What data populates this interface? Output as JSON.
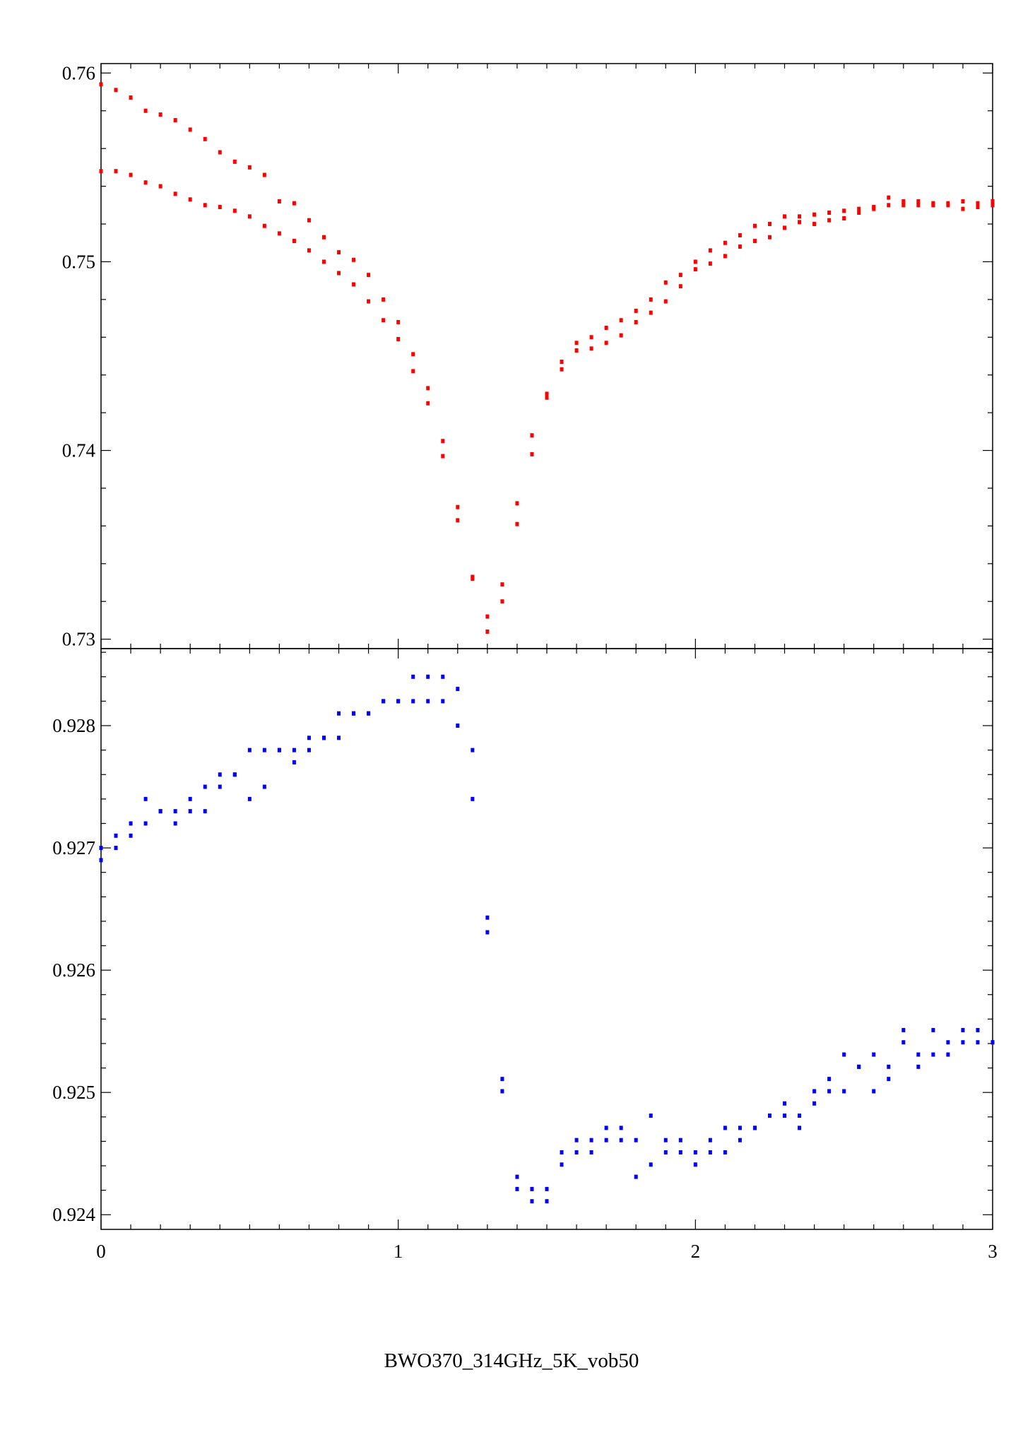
{
  "caption": "BWO370_314GHz_5K_vob50",
  "chart_data": [
    {
      "type": "scatter",
      "panel": "top",
      "title": "",
      "xlabel": "",
      "ylabel": "",
      "xlim": [
        0,
        3
      ],
      "ylim": [
        0.7295,
        0.7605
      ],
      "x_ticks": [
        0,
        1,
        2,
        3
      ],
      "y_ticks": [
        0.73,
        0.74,
        0.75,
        0.76
      ],
      "y_tick_labels": [
        "0.73",
        "0.74",
        "0.75",
        "0.76"
      ],
      "grid": false,
      "legend": "none",
      "color": "#ff0000",
      "series": [
        {
          "x": [
            0.0,
            0.05,
            0.1,
            0.15,
            0.2,
            0.25,
            0.3,
            0.35,
            0.4,
            0.45,
            0.5,
            0.55,
            0.6,
            0.65,
            0.7,
            0.75,
            0.8,
            0.85,
            0.9,
            0.95,
            1.0,
            1.05,
            1.1,
            1.15,
            1.2,
            1.25,
            1.3,
            1.35,
            1.4,
            1.45,
            1.5,
            1.55,
            1.6,
            1.65,
            1.7,
            1.75,
            1.8,
            1.85,
            1.9,
            1.95,
            2.0,
            2.05,
            2.1,
            2.15,
            2.2,
            2.25,
            2.3,
            2.35,
            2.4,
            2.45,
            2.5,
            2.55,
            2.6,
            2.65,
            2.7,
            2.75,
            2.8,
            2.85,
            2.9,
            2.95,
            3.0
          ],
          "y": [
            0.7594,
            0.7591,
            0.7587,
            0.758,
            0.7578,
            0.7575,
            0.757,
            0.7565,
            0.7558,
            0.7553,
            0.755,
            0.7546,
            0.7532,
            0.7531,
            0.7522,
            0.7513,
            0.7505,
            0.7501,
            0.7493,
            0.748,
            0.7468,
            0.7451,
            0.7433,
            0.7405,
            0.737,
            0.7333,
            0.7312,
            0.7329,
            0.7372,
            0.7408,
            0.743,
            0.7447,
            0.7457,
            0.746,
            0.7465,
            0.7469,
            0.7474,
            0.748,
            0.7489,
            0.7493,
            0.75,
            0.7506,
            0.751,
            0.7514,
            0.7519,
            0.752,
            0.7524,
            0.7524,
            0.7525,
            0.7526,
            0.7527,
            0.7528,
            0.7529,
            0.7534,
            0.7532,
            0.7532,
            0.7531,
            0.7531,
            0.7532,
            0.7531,
            0.7532
          ]
        },
        {
          "x": [
            0.0,
            0.05,
            0.1,
            0.15,
            0.2,
            0.25,
            0.3,
            0.35,
            0.4,
            0.45,
            0.5,
            0.55,
            0.6,
            0.65,
            0.7,
            0.75,
            0.8,
            0.85,
            0.9,
            0.95,
            1.0,
            1.05,
            1.1,
            1.15,
            1.2,
            1.25,
            1.3,
            1.35,
            1.4,
            1.45,
            1.5,
            1.55,
            1.6,
            1.65,
            1.7,
            1.75,
            1.8,
            1.85,
            1.9,
            1.95,
            2.0,
            2.05,
            2.1,
            2.15,
            2.2,
            2.25,
            2.3,
            2.35,
            2.4,
            2.45,
            2.5,
            2.55,
            2.6,
            2.65,
            2.7,
            2.75,
            2.8,
            2.85,
            2.9,
            2.95,
            3.0
          ],
          "y": [
            0.7548,
            0.7548,
            0.7546,
            0.7542,
            0.754,
            0.7536,
            0.7533,
            0.753,
            0.7529,
            0.7527,
            0.7524,
            0.7519,
            0.7515,
            0.7511,
            0.7506,
            0.75,
            0.7494,
            0.7488,
            0.7479,
            0.7469,
            0.7459,
            0.7442,
            0.7425,
            0.7397,
            0.7363,
            0.7332,
            0.7304,
            0.732,
            0.7361,
            0.7398,
            0.7428,
            0.7443,
            0.7453,
            0.7454,
            0.7457,
            0.7461,
            0.7468,
            0.7473,
            0.7479,
            0.7487,
            0.7496,
            0.7499,
            0.7503,
            0.7508,
            0.7511,
            0.7513,
            0.7518,
            0.7521,
            0.752,
            0.7522,
            0.7523,
            0.7526,
            0.7528,
            0.753,
            0.753,
            0.753,
            0.753,
            0.753,
            0.7528,
            0.7529,
            0.753
          ]
        }
      ]
    },
    {
      "type": "scatter",
      "panel": "bottom",
      "title": "",
      "xlabel": "",
      "ylabel": "",
      "xlim": [
        0,
        3
      ],
      "ylim": [
        0.92388,
        0.92863
      ],
      "x_ticks": [
        0,
        1,
        2,
        3
      ],
      "x_tick_labels": [
        "0",
        "1",
        "2",
        "3"
      ],
      "y_ticks": [
        0.924,
        0.925,
        0.926,
        0.927,
        0.928
      ],
      "y_tick_labels": [
        "0.924",
        "0.925",
        "0.926",
        "0.927",
        "0.928"
      ],
      "grid": false,
      "legend": "none",
      "color": "#0000ff",
      "series": [
        {
          "x": [
            0.0,
            0.05,
            0.1,
            0.15,
            0.2,
            0.25,
            0.3,
            0.35,
            0.4,
            0.45,
            0.5,
            0.55,
            0.6,
            0.65,
            0.7,
            0.75,
            0.8,
            0.85,
            0.9,
            0.95,
            1.0,
            1.05,
            1.1,
            1.15,
            1.2,
            1.25,
            1.3,
            1.35,
            1.4,
            1.45,
            1.5,
            1.55,
            1.6,
            1.65,
            1.7,
            1.75,
            1.8,
            1.85,
            1.9,
            1.95,
            2.0,
            2.05,
            2.1,
            2.15,
            2.2,
            2.25,
            2.3,
            2.35,
            2.4,
            2.45,
            2.5,
            2.55,
            2.6,
            2.65,
            2.7,
            2.75,
            2.8,
            2.85,
            2.9,
            2.95,
            3.0
          ],
          "y": [
            0.927,
            0.9271,
            0.9272,
            0.9274,
            0.9273,
            0.9273,
            0.9274,
            0.9275,
            0.9276,
            0.9276,
            0.9278,
            0.9278,
            0.9278,
            0.9278,
            0.9279,
            0.9279,
            0.9281,
            0.9281,
            0.9281,
            0.9282,
            0.9282,
            0.9284,
            0.9284,
            0.9284,
            0.9283,
            0.9278,
            0.92643,
            0.92511,
            0.92431,
            0.92421,
            0.92421,
            0.92451,
            0.92461,
            0.92461,
            0.92471,
            0.92471,
            0.92461,
            0.92481,
            0.92461,
            0.92461,
            0.92451,
            0.92461,
            0.92471,
            0.92471,
            0.92471,
            0.92481,
            0.92491,
            0.92481,
            0.92501,
            0.92511,
            0.92531,
            0.92521,
            0.92531,
            0.92521,
            0.92551,
            0.92531,
            0.92551,
            0.92541,
            0.92551,
            0.92551,
            0.92541
          ]
        },
        {
          "x": [
            0.0,
            0.05,
            0.1,
            0.15,
            0.2,
            0.25,
            0.3,
            0.35,
            0.4,
            0.45,
            0.5,
            0.55,
            0.6,
            0.65,
            0.7,
            0.75,
            0.8,
            0.85,
            0.9,
            0.95,
            1.0,
            1.05,
            1.1,
            1.15,
            1.2,
            1.25,
            1.3,
            1.35,
            1.4,
            1.45,
            1.5,
            1.55,
            1.6,
            1.65,
            1.7,
            1.75,
            1.8,
            1.85,
            1.9,
            1.95,
            2.0,
            2.05,
            2.1,
            2.15,
            2.2,
            2.25,
            2.3,
            2.35,
            2.4,
            2.45,
            2.5,
            2.55,
            2.6,
            2.65,
            2.7,
            2.75,
            2.8,
            2.85,
            2.9,
            2.95,
            3.0
          ],
          "y": [
            0.9269,
            0.927,
            0.9271,
            0.9272,
            0.9273,
            0.9272,
            0.9273,
            0.9273,
            0.9275,
            0.9276,
            0.9274,
            0.9275,
            0.9278,
            0.9277,
            0.9278,
            0.9279,
            0.9279,
            0.9281,
            0.9281,
            0.9282,
            0.9282,
            0.9282,
            0.9282,
            0.9282,
            0.928,
            0.9274,
            0.92631,
            0.92501,
            0.92421,
            0.92411,
            0.92411,
            0.92441,
            0.92451,
            0.92451,
            0.92461,
            0.92461,
            0.92431,
            0.92441,
            0.92451,
            0.92451,
            0.92441,
            0.92451,
            0.92451,
            0.92461,
            0.92471,
            0.92481,
            0.92481,
            0.92471,
            0.92491,
            0.92501,
            0.92501,
            0.92521,
            0.92501,
            0.92511,
            0.92541,
            0.92521,
            0.92531,
            0.92531,
            0.92541,
            0.92541,
            0.92541
          ]
        }
      ]
    }
  ]
}
